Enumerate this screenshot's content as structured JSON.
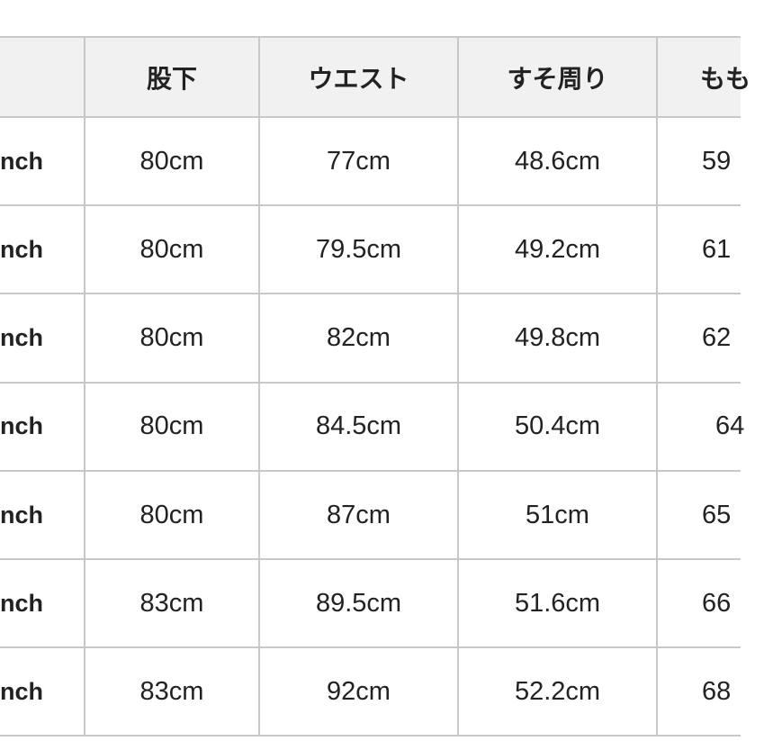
{
  "header": [
    "",
    "股下",
    "ウエスト",
    "すそ周り",
    "もも"
  ],
  "rows": [
    [
      "nch",
      "80cm",
      "77cm",
      "48.6cm",
      "59"
    ],
    [
      "nch",
      "80cm",
      "79.5cm",
      "49.2cm",
      "61"
    ],
    [
      "nch",
      "80cm",
      "82cm",
      "49.8cm",
      "62"
    ],
    [
      "nch",
      "80cm",
      "84.5cm",
      "50.4cm",
      "64"
    ],
    [
      "nch",
      "80cm",
      "87cm",
      "51cm",
      "65"
    ],
    [
      "nch",
      "83cm",
      "89.5cm",
      "51.6cm",
      "66"
    ],
    [
      "nch",
      "83cm",
      "92cm",
      "52.2cm",
      "68"
    ]
  ]
}
